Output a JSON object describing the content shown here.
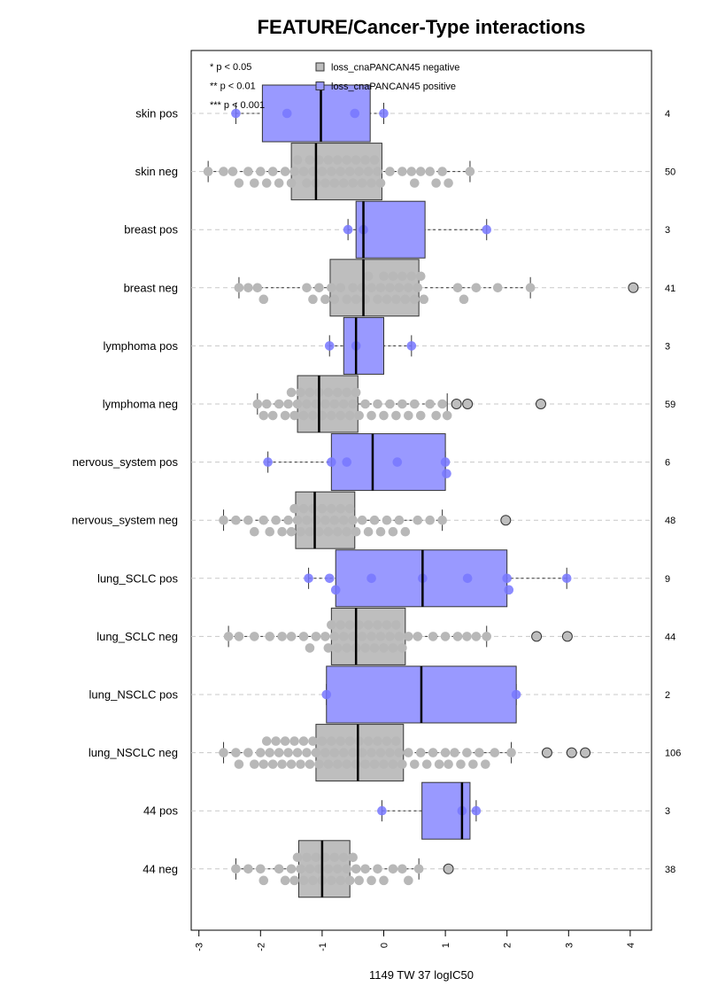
{
  "chart_data": {
    "type": "boxplot",
    "title": "FEATURE/Cancer-Type interactions",
    "xlabel": "1149 TW 37 logIC50",
    "xlim": [
      -3.1,
      4.3
    ],
    "xticks": [
      -3,
      -2,
      -1,
      0,
      1,
      2,
      3,
      4
    ],
    "xtick_labels": [
      "-3",
      "-2",
      "-1",
      "0",
      "1",
      "2",
      "3",
      "4"
    ],
    "orientation": "horizontal",
    "grid": "dashed horizontal lines at each group",
    "significance_legend": [
      "* p < 0.05",
      "** p < 0.01",
      "*** p < 0.001"
    ],
    "legend": [
      {
        "label": "loss_cnaPANCAN45 negative",
        "color": "#bebebe"
      },
      {
        "label": "loss_cnaPANCAN45 positive",
        "color": "#9999ff"
      }
    ],
    "colors": {
      "negative_box": "#bebebe",
      "positive_box": "#9999ff",
      "negative_point": "#b8b8b8",
      "positive_point": "#7777ff",
      "grid": "#c8c8c8"
    },
    "groups": [
      {
        "label": "skin pos",
        "n": "4",
        "kind": "pos",
        "whisker": [
          -2.4,
          0.0
        ],
        "q1": -1.97,
        "median": -1.02,
        "q3": -0.22,
        "points": [
          -2.4,
          -1.57,
          -0.47,
          0.0
        ],
        "outliers": []
      },
      {
        "label": "skin neg",
        "n": "50",
        "kind": "neg",
        "whisker": [
          -2.85,
          1.4
        ],
        "q1": -1.5,
        "median": -1.1,
        "q3": -0.03,
        "points": [
          -2.85,
          -2.6,
          -2.45,
          -2.35,
          -2.2,
          -2.1,
          -2.0,
          -1.9,
          -1.8,
          -1.7,
          -1.6,
          -1.5,
          -1.45,
          -1.4,
          -1.3,
          -1.25,
          -1.2,
          -1.15,
          -1.1,
          -1.05,
          -1.0,
          -0.95,
          -0.9,
          -0.85,
          -0.8,
          -0.75,
          -0.7,
          -0.65,
          -0.6,
          -0.55,
          -0.5,
          -0.45,
          -0.4,
          -0.35,
          -0.3,
          -0.25,
          -0.2,
          -0.15,
          -0.1,
          -0.05,
          0.1,
          0.3,
          0.45,
          0.5,
          0.6,
          0.75,
          0.85,
          0.95,
          1.05,
          1.4
        ],
        "outliers": []
      },
      {
        "label": "breast pos",
        "n": "3",
        "kind": "pos",
        "whisker": [
          -0.58,
          1.67
        ],
        "q1": -0.45,
        "median": -0.33,
        "q3": 0.67,
        "points": [
          -0.58,
          -0.33,
          1.67
        ],
        "outliers": []
      },
      {
        "label": "breast neg",
        "n": "41",
        "kind": "neg",
        "whisker": [
          -2.35,
          2.38
        ],
        "q1": -0.87,
        "median": -0.33,
        "q3": 0.57,
        "points": [
          -2.35,
          -2.2,
          -2.05,
          -1.95,
          -1.25,
          -1.15,
          -1.05,
          -0.95,
          -0.85,
          -0.8,
          -0.7,
          -0.6,
          -0.5,
          -0.45,
          -0.35,
          -0.3,
          -0.25,
          -0.2,
          -0.1,
          -0.05,
          0.0,
          0.05,
          0.1,
          0.15,
          0.2,
          0.25,
          0.3,
          0.35,
          0.4,
          0.45,
          0.5,
          0.55,
          0.6,
          0.65,
          1.2,
          1.3,
          1.5,
          1.85,
          2.38
        ],
        "outliers": [
          4.05
        ]
      },
      {
        "label": "lymphoma pos",
        "n": "3",
        "kind": "pos",
        "whisker": [
          -0.88,
          0.45
        ],
        "q1": -0.65,
        "median": -0.45,
        "q3": 0.0,
        "points": [
          -0.88,
          -0.45,
          0.45
        ],
        "outliers": []
      },
      {
        "label": "lymphoma neg",
        "n": "59",
        "kind": "neg",
        "whisker": [
          -2.05,
          1.03
        ],
        "q1": -1.4,
        "median": -1.05,
        "q3": -0.42,
        "points": [
          -2.05,
          -1.95,
          -1.9,
          -1.8,
          -1.7,
          -1.6,
          -1.55,
          -1.5,
          -1.45,
          -1.4,
          -1.35,
          -1.3,
          -1.25,
          -1.2,
          -1.15,
          -1.1,
          -1.05,
          -1.0,
          -0.95,
          -0.9,
          -0.85,
          -0.8,
          -0.75,
          -0.7,
          -0.65,
          -0.6,
          -0.55,
          -0.5,
          -0.45,
          -0.4,
          -0.3,
          -0.2,
          -0.1,
          0.0,
          0.1,
          0.2,
          0.3,
          0.4,
          0.5,
          0.6,
          0.75,
          0.85,
          0.95,
          1.03
        ],
        "outliers": [
          1.18,
          1.36,
          2.55
        ]
      },
      {
        "label": "nervous_system pos",
        "n": "6",
        "kind": "pos",
        "whisker": [
          -1.88,
          1.0
        ],
        "q1": -0.85,
        "median": -0.18,
        "q3": 1.0,
        "points": [
          -1.88,
          -0.85,
          -0.6,
          0.22,
          1.0,
          1.02
        ],
        "outliers": []
      },
      {
        "label": "nervous_system neg",
        "n": "48",
        "kind": "neg",
        "whisker": [
          -2.6,
          0.95
        ],
        "q1": -1.43,
        "median": -1.12,
        "q3": -0.47,
        "points": [
          -2.6,
          -2.4,
          -2.2,
          -2.1,
          -1.95,
          -1.85,
          -1.75,
          -1.65,
          -1.55,
          -1.5,
          -1.45,
          -1.4,
          -1.35,
          -1.3,
          -1.25,
          -1.2,
          -1.15,
          -1.1,
          -1.05,
          -1.0,
          -0.95,
          -0.9,
          -0.85,
          -0.8,
          -0.75,
          -0.7,
          -0.65,
          -0.6,
          -0.55,
          -0.5,
          -0.45,
          -0.35,
          -0.25,
          -0.15,
          -0.05,
          0.05,
          0.15,
          0.25,
          0.35,
          0.55,
          0.75,
          0.95
        ],
        "outliers": [
          1.98
        ]
      },
      {
        "label": "lung_SCLC pos",
        "n": "9",
        "kind": "pos",
        "whisker": [
          -1.22,
          2.97
        ],
        "q1": -0.78,
        "median": 0.63,
        "q3": 2.0,
        "points": [
          -1.22,
          -0.88,
          -0.78,
          -0.2,
          0.63,
          1.36,
          2.0,
          2.03,
          2.97
        ],
        "outliers": []
      },
      {
        "label": "lung_SCLC neg",
        "n": "44",
        "kind": "neg",
        "whisker": [
          -2.52,
          1.67
        ],
        "q1": -0.85,
        "median": -0.45,
        "q3": 0.35,
        "points": [
          -2.52,
          -2.35,
          -2.1,
          -1.85,
          -1.65,
          -1.5,
          -1.3,
          -1.2,
          -1.1,
          -0.95,
          -0.9,
          -0.85,
          -0.8,
          -0.75,
          -0.7,
          -0.65,
          -0.6,
          -0.55,
          -0.5,
          -0.45,
          -0.4,
          -0.35,
          -0.3,
          -0.25,
          -0.2,
          -0.15,
          -0.1,
          -0.05,
          0.0,
          0.05,
          0.1,
          0.15,
          0.2,
          0.25,
          0.3,
          0.4,
          0.55,
          0.8,
          1.0,
          1.2,
          1.35,
          1.5,
          1.67
        ],
        "outliers": [
          2.48,
          2.98
        ]
      },
      {
        "label": "lung_NSCLC pos",
        "n": "2",
        "kind": "pos",
        "whisker": [
          -0.93,
          2.15
        ],
        "q1": -0.93,
        "median": 0.61,
        "q3": 2.15,
        "points": [
          -0.93,
          2.15
        ],
        "outliers": []
      },
      {
        "label": "lung_NSCLC neg",
        "n": "106",
        "kind": "neg",
        "whisker": [
          -2.6,
          2.07
        ],
        "q1": -1.1,
        "median": -0.42,
        "q3": 0.32,
        "points": [
          -2.6,
          -2.4,
          -2.35,
          -2.2,
          -2.1,
          -2.0,
          -1.95,
          -1.9,
          -1.85,
          -1.8,
          -1.75,
          -1.7,
          -1.65,
          -1.6,
          -1.55,
          -1.5,
          -1.45,
          -1.4,
          -1.35,
          -1.3,
          -1.25,
          -1.2,
          -1.15,
          -1.1,
          -1.05,
          -1.0,
          -0.95,
          -0.9,
          -0.85,
          -0.8,
          -0.75,
          -0.7,
          -0.65,
          -0.6,
          -0.55,
          -0.5,
          -0.45,
          -0.4,
          -0.35,
          -0.3,
          -0.25,
          -0.2,
          -0.15,
          -0.1,
          -0.05,
          0.0,
          0.05,
          0.1,
          0.15,
          0.2,
          0.25,
          0.3,
          0.4,
          0.5,
          0.6,
          0.7,
          0.8,
          0.9,
          1.0,
          1.05,
          1.15,
          1.25,
          1.35,
          1.45,
          1.55,
          1.65,
          1.8,
          2.07
        ],
        "outliers": [
          2.65,
          3.05,
          3.27
        ]
      },
      {
        "label": "44 pos",
        "n": "3",
        "kind": "pos",
        "whisker": [
          -0.03,
          1.5
        ],
        "q1": 0.62,
        "median": 1.27,
        "q3": 1.4,
        "points": [
          -0.03,
          1.27,
          1.5
        ],
        "outliers": []
      },
      {
        "label": "44 neg",
        "n": "38",
        "kind": "neg",
        "whisker": [
          -2.4,
          0.57
        ],
        "q1": -1.38,
        "median": -1.0,
        "q3": -0.55,
        "points": [
          -2.4,
          -2.2,
          -2.0,
          -1.95,
          -1.7,
          -1.6,
          -1.5,
          -1.45,
          -1.4,
          -1.35,
          -1.3,
          -1.25,
          -1.2,
          -1.15,
          -1.1,
          -1.05,
          -1.0,
          -0.95,
          -0.9,
          -0.85,
          -0.8,
          -0.75,
          -0.7,
          -0.65,
          -0.6,
          -0.55,
          -0.5,
          -0.45,
          -0.4,
          -0.3,
          -0.2,
          -0.1,
          0.0,
          0.15,
          0.3,
          0.4,
          0.57
        ],
        "outliers": [
          1.05
        ]
      }
    ]
  }
}
